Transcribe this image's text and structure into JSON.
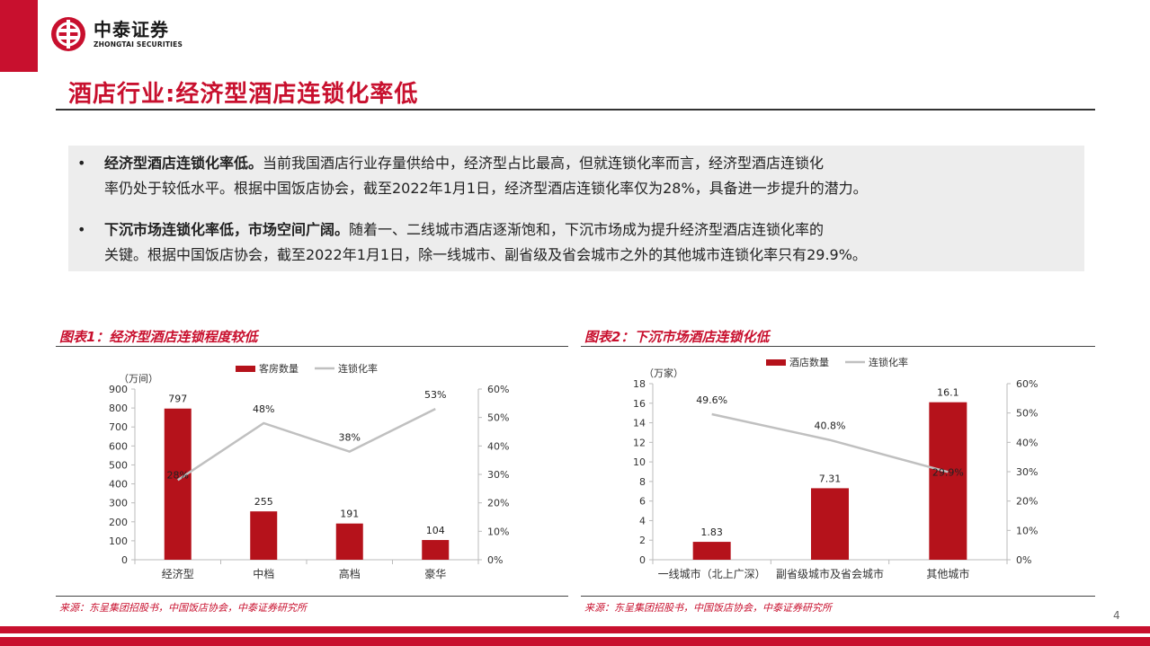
{
  "header": {
    "logo_cn": "中泰证券",
    "logo_en": "ZHONGTAI SECURITIES",
    "brand_color": "#c8102e"
  },
  "title": "酒店行业:经济型酒店连锁化率低",
  "bullets": [
    {
      "bold": "经济型酒店连锁化率低。",
      "line1_rest": "当前我国酒店行业存量供给中，经济型占比最高，但就连锁化率而言，经济型酒店连锁化",
      "line2": "率仍处于较低水平。根据中国饭店协会，截至2022年1月1日，经济型酒店连锁化率仅为28%，具备进一步提升的潜力。"
    },
    {
      "bold": "下沉市场连锁化率低，市场空间广阔。",
      "line1_rest": "随着一、二线城市酒店逐渐饱和，下沉市场成为提升经济型酒店连锁化率的",
      "line2": "关键。根据中国饭店协会，截至2022年1月1日，除一线城市、副省级及省会城市之外的其他城市连锁化率只有29.9%。"
    }
  ],
  "charts": [
    {
      "title": "图表1：经济型酒店连锁程度较低",
      "source": "来源：东呈集团招股书，中国饭店协会，中泰证券研究所"
    },
    {
      "title": "图表2：下沉市场酒店连锁化低",
      "source": "来源：东呈集团招股书，中国饭店协会，中泰证券研究所"
    }
  ],
  "chart_data": [
    {
      "type": "bar",
      "categories": [
        "经济型",
        "中档",
        "高档",
        "豪华"
      ],
      "series": [
        {
          "name": "客房数量",
          "kind": "bar",
          "axis": "left",
          "values": [
            797,
            255,
            191,
            104
          ],
          "labels": [
            "797",
            "255",
            "191",
            "104"
          ],
          "color": "#b5121b"
        },
        {
          "name": "连锁化率",
          "kind": "line",
          "axis": "right",
          "values": [
            28,
            48,
            38,
            53
          ],
          "labels": [
            "28%",
            "48%",
            "38%",
            "53%"
          ],
          "color": "#c0c0c0"
        }
      ],
      "unit_label": "（万间）",
      "ylim_left": [
        0,
        900
      ],
      "yticks_left": [
        "0",
        "100",
        "200",
        "300",
        "400",
        "500",
        "600",
        "700",
        "800",
        "900"
      ],
      "ylim_right": [
        0,
        60
      ],
      "yticks_right": [
        "0%",
        "10%",
        "20%",
        "30%",
        "40%",
        "50%",
        "60%"
      ],
      "legend": "top"
    },
    {
      "type": "bar",
      "categories": [
        "一线城市（北上广深）",
        "副省级城市及省会城市",
        "其他城市"
      ],
      "series": [
        {
          "name": "酒店数量",
          "kind": "bar",
          "axis": "left",
          "values": [
            1.83,
            7.31,
            16.1
          ],
          "labels": [
            "1.83",
            "7.31",
            "16.1"
          ],
          "color": "#b5121b"
        },
        {
          "name": "连锁化率",
          "kind": "line",
          "axis": "right",
          "values": [
            49.6,
            40.8,
            29.9
          ],
          "labels": [
            "49.6%",
            "40.8%",
            "29.9%"
          ],
          "color": "#c0c0c0"
        }
      ],
      "unit_label": "（万家）",
      "ylim_left": [
        0,
        18
      ],
      "yticks_left": [
        "0",
        "2",
        "4",
        "6",
        "8",
        "10",
        "12",
        "14",
        "16",
        "18"
      ],
      "ylim_right": [
        0,
        60
      ],
      "yticks_right": [
        "0%",
        "10%",
        "20%",
        "30%",
        "40%",
        "50%",
        "60%"
      ],
      "legend": "top"
    }
  ],
  "page_number": "4"
}
